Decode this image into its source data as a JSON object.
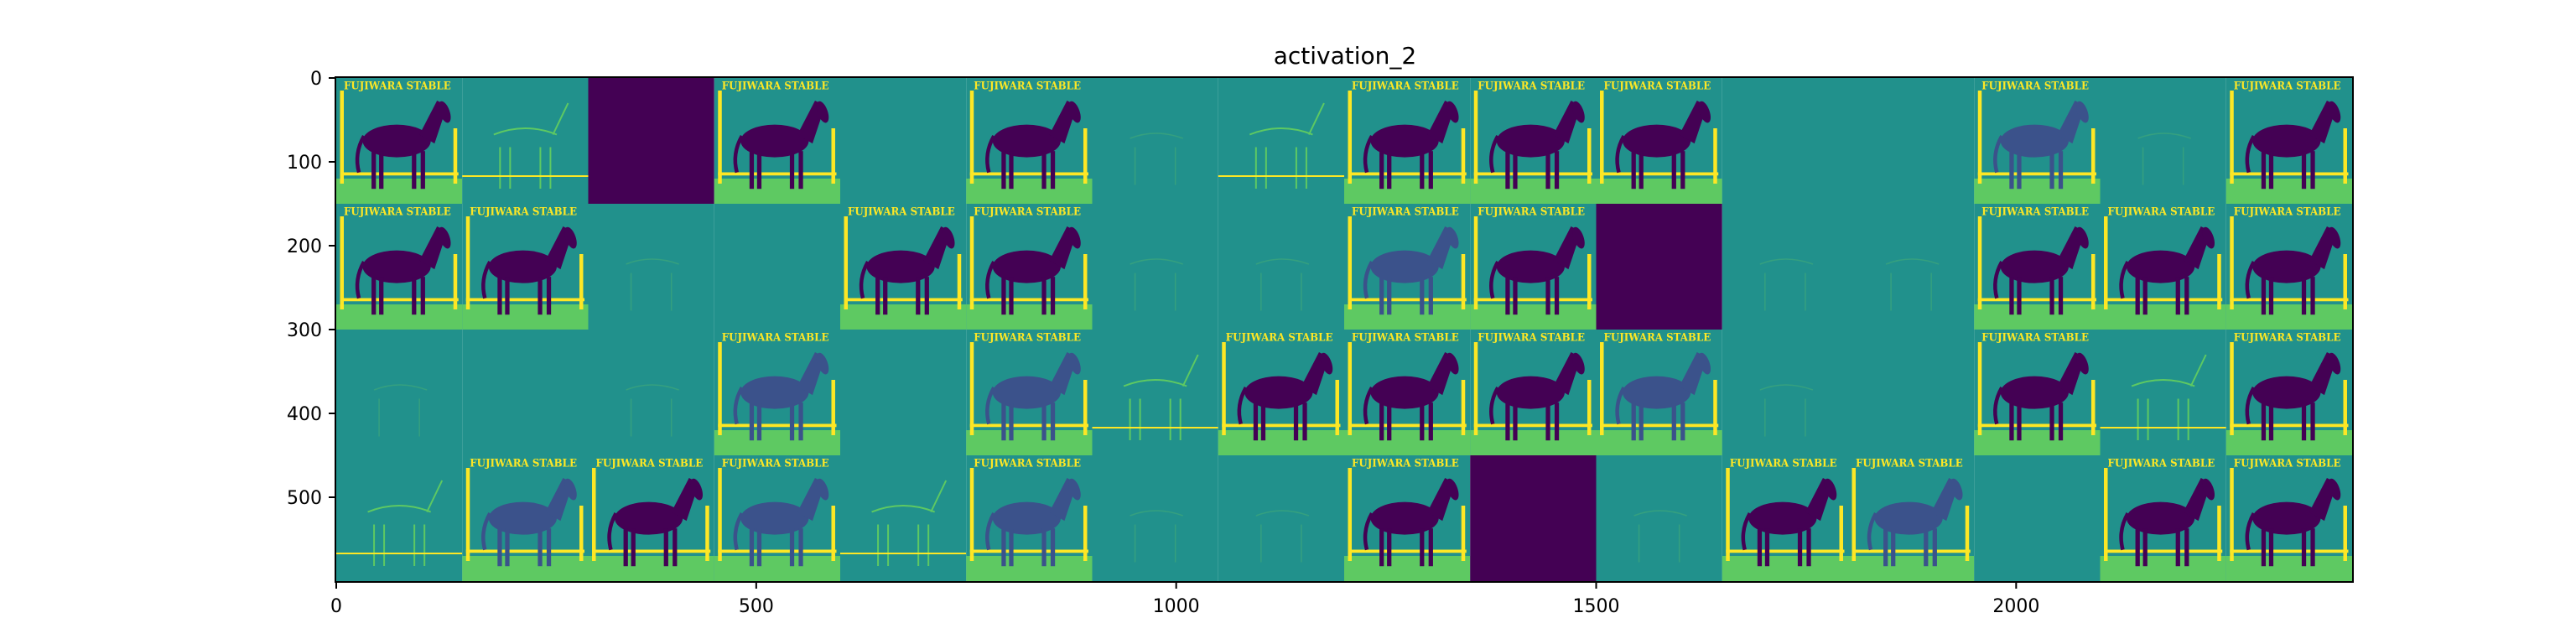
{
  "chart_data": {
    "type": "heatmap",
    "title": "activation_2",
    "xlabel": "",
    "ylabel": "",
    "colormap": "viridis",
    "colormap_stops": [
      "#440154",
      "#3b528b",
      "#21918c",
      "#5ec962",
      "#fde725"
    ],
    "xlim": [
      0,
      2400
    ],
    "ylim": [
      600,
      0
    ],
    "x_ticks": [
      0,
      500,
      1000,
      1500,
      2000
    ],
    "y_ticks": [
      0,
      100,
      200,
      300,
      400,
      500
    ],
    "grid": {
      "rows": 4,
      "cols": 16,
      "tile_size": 150
    },
    "tile_text": "FUJIWARA STABLE",
    "tiles": [
      [
        "horse",
        "edges",
        "dark",
        "horse",
        "flat",
        "horse",
        "faint",
        "edges",
        "horse",
        "horse",
        "horse",
        "flat",
        "flat",
        "texture",
        "faint",
        "horse"
      ],
      [
        "horse",
        "horse",
        "faint",
        "flat",
        "horse",
        "horse",
        "faint",
        "faint",
        "texture",
        "horse",
        "dark",
        "faint",
        "faint",
        "horse",
        "horse",
        "horse"
      ],
      [
        "faint",
        "flat",
        "faint",
        "texture",
        "flat",
        "texture",
        "edges",
        "horse",
        "horse",
        "horse",
        "texture",
        "faint",
        "flat",
        "horse",
        "edges",
        "horse"
      ],
      [
        "edges",
        "texture",
        "horse",
        "texture",
        "edges",
        "texture",
        "faint",
        "faint",
        "horse",
        "dark",
        "faint",
        "horse",
        "texture",
        "flat",
        "horse",
        "horse"
      ]
    ]
  }
}
